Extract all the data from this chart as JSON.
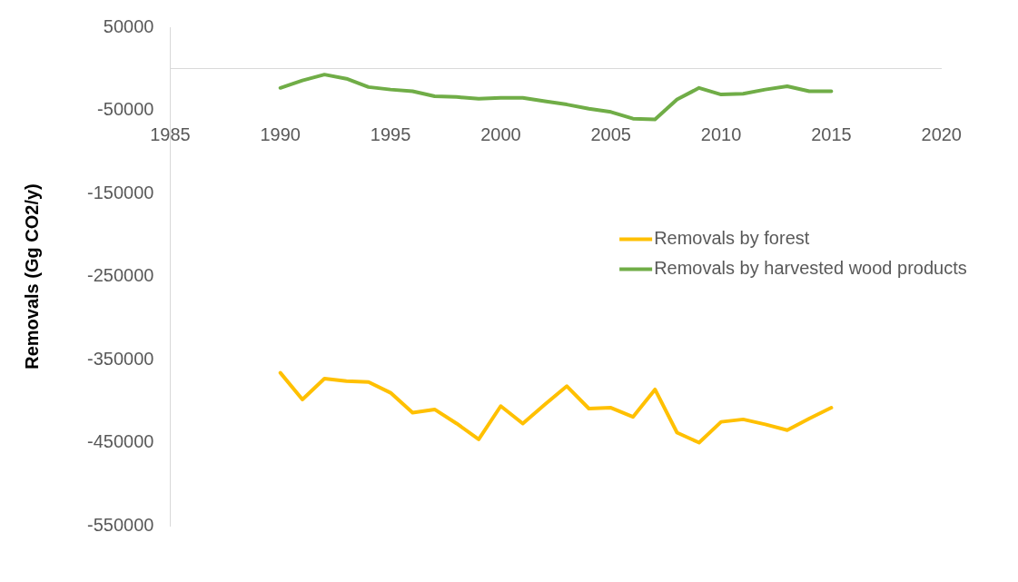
{
  "chart_data": {
    "type": "line",
    "ylabel": "Removals (Gg CO2/y)",
    "xlim": [
      1985,
      2020
    ],
    "xticks": [
      1985,
      1990,
      1995,
      2000,
      2005,
      2010,
      2015,
      2020
    ],
    "ylim": [
      -550000,
      50000
    ],
    "yticks": [
      50000,
      -50000,
      -150000,
      -250000,
      -350000,
      -450000,
      -550000
    ],
    "grid": false,
    "legend": "right",
    "marker": "none",
    "line_style": "solid",
    "x": [
      1990,
      1991,
      1992,
      1993,
      1994,
      1995,
      1996,
      1997,
      1998,
      1999,
      2000,
      2001,
      2002,
      2003,
      2004,
      2005,
      2006,
      2007,
      2008,
      2009,
      2010,
      2011,
      2012,
      2013,
      2014,
      2015
    ],
    "series": [
      {
        "name": "Removals by forest",
        "color": "#ffc000",
        "values": [
          -366000,
          -398000,
          -373000,
          -376000,
          -377000,
          -390000,
          -414000,
          -410000,
          -427000,
          -446000,
          -406000,
          -427000,
          -404000,
          -382000,
          -409000,
          -408000,
          -419000,
          -386000,
          -438000,
          -450000,
          -425000,
          -422000,
          -428000,
          -435000,
          -421000,
          -408000
        ]
      },
      {
        "name": "Removals by harvested wood products",
        "color": "#70ad47",
        "values": [
          -23000,
          -14000,
          -7000,
          -12000,
          -22000,
          -25000,
          -27000,
          -33000,
          -34000,
          -36000,
          -35000,
          -35000,
          -39000,
          -43000,
          -48000,
          -52000,
          -60000,
          -61000,
          -37000,
          -23000,
          -31000,
          -30000,
          -25000,
          -21000,
          -27000,
          -27000
        ]
      }
    ]
  }
}
